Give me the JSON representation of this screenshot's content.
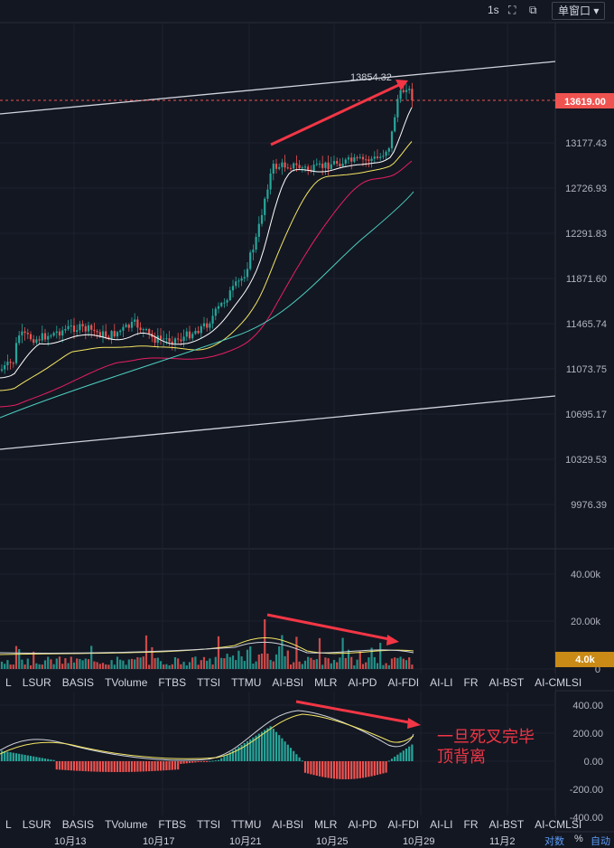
{
  "toolbar": {
    "interval": "1s",
    "window_btn": "单窗口"
  },
  "indicator_tabs": [
    "L",
    "LSUR",
    "BASIS",
    "TVolume",
    "FTBS",
    "TTSI",
    "TTMU",
    "AI-BSI",
    "MLR",
    "AI-PD",
    "AI-FDI",
    "AI-LI",
    "FR",
    "AI-BST",
    "AI-CMLSI"
  ],
  "date_labels": [
    "10月13",
    "10月17",
    "10月21",
    "10月25",
    "10月29",
    "11月2"
  ],
  "scale_options": [
    "对数",
    "%",
    "自动"
  ],
  "annotation_text": [
    "一旦死叉完毕",
    "顶背离"
  ],
  "colors": {
    "up": "#26a69a",
    "down": "#ef5350",
    "accent": "#f23645",
    "volume_badge": "#c98a16"
  },
  "chart_data": [
    {
      "type": "candlestick",
      "price_ticks": [
        "13177.43",
        "12726.93",
        "12291.83",
        "11871.60",
        "11465.74",
        "11073.75",
        "10695.17",
        "10329.53",
        "9976.39"
      ],
      "last_price": "13619.00",
      "peak_label": "13854.32",
      "grid": true
    },
    {
      "type": "bar",
      "name": "volume",
      "y_ticks": [
        "40.00k",
        "20.00k",
        "0"
      ],
      "current": "4.0k",
      "grid": true
    },
    {
      "type": "bar",
      "name": "MACD",
      "y_ticks": [
        "400.00",
        "200.00",
        "0.00",
        "-200.00",
        "-400.00"
      ],
      "grid": true
    }
  ]
}
